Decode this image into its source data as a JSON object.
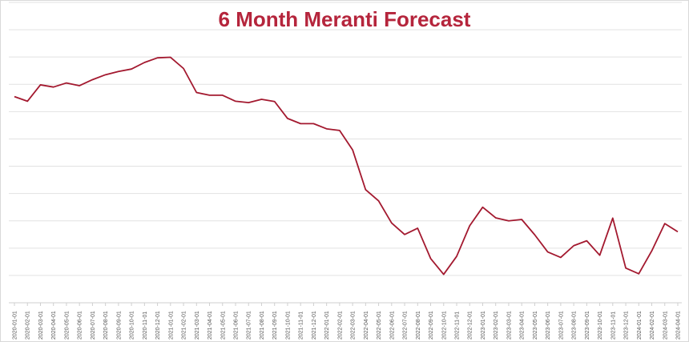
{
  "chart_data": {
    "type": "line",
    "title": "6 Month Meranti Forecast",
    "xlabel": "",
    "ylabel": "",
    "grid": true,
    "legend": "none",
    "ylim": [
      0,
      11
    ],
    "x": [
      "2020-01-01",
      "2020-02-01",
      "2020-03-01",
      "2020-04-01",
      "2020-05-01",
      "2020-06-01",
      "2020-07-01",
      "2020-08-01",
      "2020-09-01",
      "2020-10-01",
      "2020-11-01",
      "2020-12-01",
      "2021-01-01",
      "2021-02-01",
      "2021-03-01",
      "2021-04-01",
      "2021-05-01",
      "2021-06-01",
      "2021-07-01",
      "2021-08-01",
      "2021-09-01",
      "2021-10-01",
      "2021-11-01",
      "2021-12-01",
      "2022-01-01",
      "2022-02-01",
      "2022-03-01",
      "2022-04-01",
      "2022-05-01",
      "2022-06-01",
      "2022-07-01",
      "2022-08-01",
      "2022-09-01",
      "2022-10-01",
      "2022-11-01",
      "2022-12-01",
      "2023-01-01",
      "2023-02-01",
      "2023-03-01",
      "2023-04-01",
      "2023-05-01",
      "2023-06-01",
      "2023-07-01",
      "2023-08-01",
      "2023-09-01",
      "2023-10-01",
      "2023-11-01",
      "2023-12-01",
      "2024-01-01",
      "2024-02-01",
      "2024-03-01",
      "2024-04-01"
    ],
    "series": [
      {
        "values": [
          7.55,
          7.38,
          7.98,
          7.9,
          8.05,
          7.95,
          8.17,
          8.35,
          8.47,
          8.56,
          8.8,
          8.97,
          8.99,
          8.58,
          7.7,
          7.6,
          7.6,
          7.38,
          7.33,
          7.45,
          7.37,
          6.75,
          6.56,
          6.56,
          6.37,
          6.31,
          5.6,
          4.14,
          3.73,
          2.92,
          2.5,
          2.73,
          1.62,
          1.04,
          1.7,
          2.82,
          3.5,
          3.11,
          3.0,
          3.05,
          2.49,
          1.86,
          1.66,
          2.09,
          2.27,
          1.74,
          3.1,
          1.27,
          1.06,
          1.9,
          2.9,
          2.6
        ]
      }
    ],
    "colors": {
      "line": "#a3192f",
      "title": "#b5253c",
      "grid": "#e2e2e2"
    }
  }
}
